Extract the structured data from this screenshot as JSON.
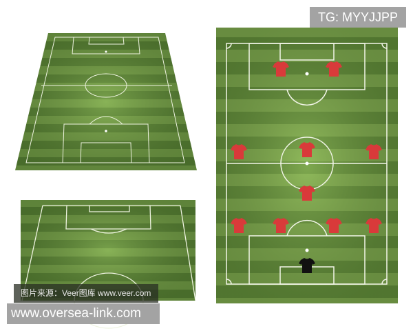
{
  "colors": {
    "grass_light": "#6f9a44",
    "grass_dark": "#4f7a30",
    "lines": "#f2f5e8",
    "home_shirt": "#d93a3a",
    "keeper_shirt": "#111111"
  },
  "icons": {
    "player": "shirt-icon",
    "goalkeeper": "shirt-icon"
  },
  "watermarks": {
    "telegram": "TG: MYYJJPP",
    "image_source": "图片来源：Veer图库 www.veer.com",
    "site": "www.oversea-link.com"
  }
}
